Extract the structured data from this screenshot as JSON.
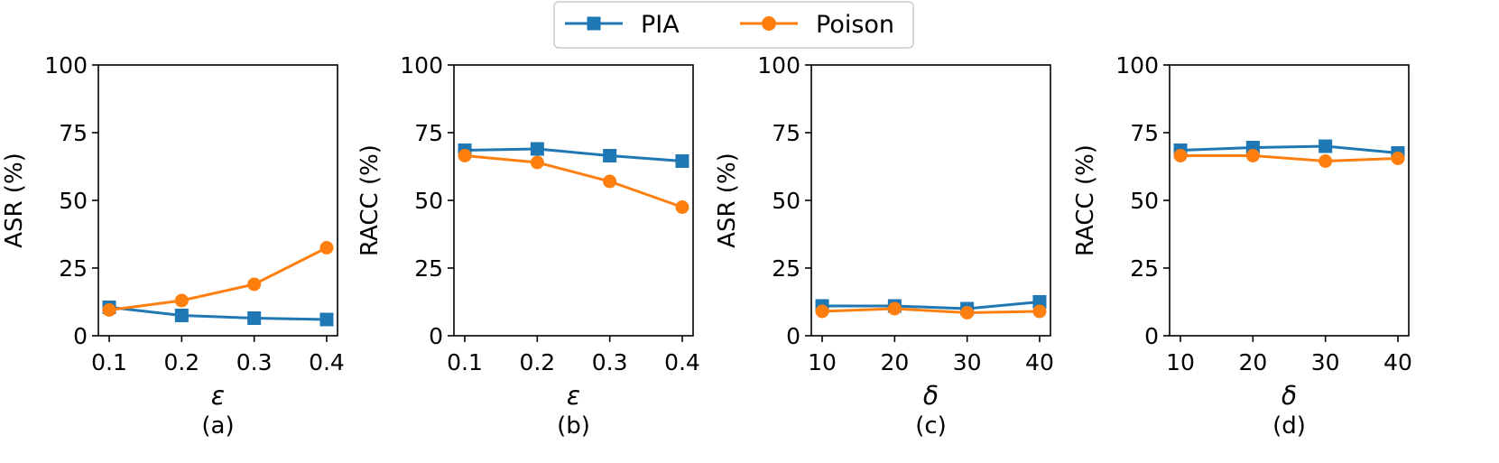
{
  "legend": {
    "entries": [
      {
        "name": "PIA",
        "color": "#1f77b4",
        "marker": "square"
      },
      {
        "name": "Poison",
        "color": "#ff7f0e",
        "marker": "circle"
      }
    ],
    "placement": "top-center"
  },
  "chart_data": [
    {
      "type": "line",
      "panel": "(a)",
      "xlabel": "ε",
      "ylabel": "ASR (%)",
      "x": [
        0.1,
        0.2,
        0.3,
        0.4
      ],
      "xticks": [
        "0.1",
        "0.2",
        "0.3",
        "0.4"
      ],
      "xlim": [
        0.085,
        0.415
      ],
      "ylim": [
        0,
        100
      ],
      "yticks": [
        "0",
        "25",
        "50",
        "75",
        "100"
      ],
      "grid": false,
      "series": [
        {
          "name": "PIA",
          "values": [
            10.5,
            7.5,
            6.5,
            6.0
          ]
        },
        {
          "name": "Poison",
          "values": [
            9.5,
            13.0,
            19.0,
            32.5
          ]
        }
      ]
    },
    {
      "type": "line",
      "panel": "(b)",
      "xlabel": "ε",
      "ylabel": "RACC (%)",
      "x": [
        0.1,
        0.2,
        0.3,
        0.4
      ],
      "xticks": [
        "0.1",
        "0.2",
        "0.3",
        "0.4"
      ],
      "xlim": [
        0.085,
        0.415
      ],
      "ylim": [
        0,
        100
      ],
      "yticks": [
        "0",
        "25",
        "50",
        "75",
        "100"
      ],
      "grid": false,
      "series": [
        {
          "name": "PIA",
          "values": [
            68.5,
            69.0,
            66.5,
            64.5
          ]
        },
        {
          "name": "Poison",
          "values": [
            66.5,
            64.0,
            57.0,
            47.5
          ]
        }
      ]
    },
    {
      "type": "line",
      "panel": "(c)",
      "xlabel": "δ",
      "ylabel": "ASR (%)",
      "x": [
        10,
        20,
        30,
        40
      ],
      "xticks": [
        "10",
        "20",
        "30",
        "40"
      ],
      "xlim": [
        8.5,
        41.5
      ],
      "ylim": [
        0,
        100
      ],
      "yticks": [
        "0",
        "25",
        "50",
        "75",
        "100"
      ],
      "grid": false,
      "series": [
        {
          "name": "PIA",
          "values": [
            11.0,
            11.0,
            10.0,
            12.5
          ]
        },
        {
          "name": "Poison",
          "values": [
            9.0,
            10.0,
            8.5,
            9.0
          ]
        }
      ]
    },
    {
      "type": "line",
      "panel": "(d)",
      "xlabel": "δ",
      "ylabel": "RACC (%)",
      "x": [
        10,
        20,
        30,
        40
      ],
      "xticks": [
        "10",
        "20",
        "30",
        "40"
      ],
      "xlim": [
        8.5,
        41.5
      ],
      "ylim": [
        0,
        100
      ],
      "yticks": [
        "0",
        "25",
        "50",
        "75",
        "100"
      ],
      "grid": false,
      "series": [
        {
          "name": "PIA",
          "values": [
            68.5,
            69.5,
            70.0,
            67.5
          ]
        },
        {
          "name": "Poison",
          "values": [
            66.5,
            66.5,
            64.5,
            65.5
          ]
        }
      ]
    }
  ]
}
